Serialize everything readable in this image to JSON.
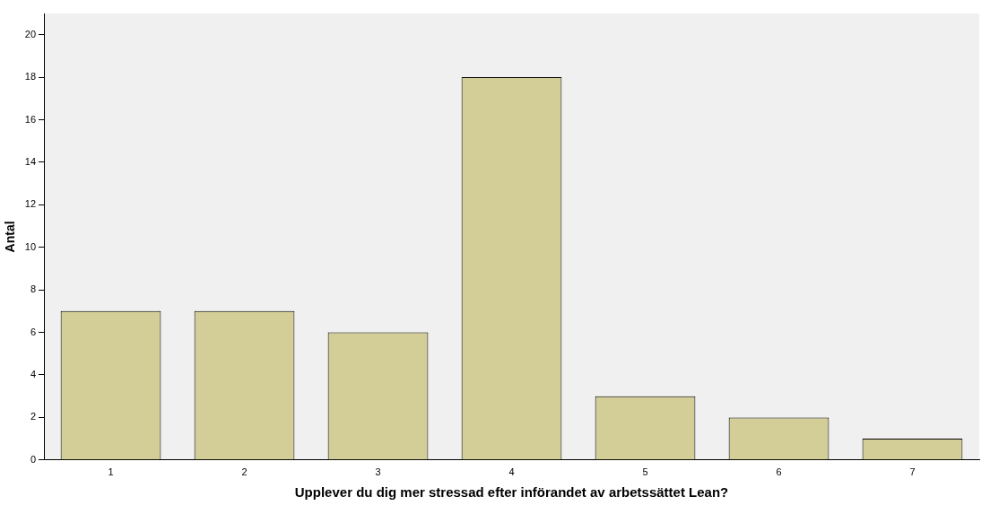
{
  "chart_data": {
    "type": "bar",
    "xlabel": "Upplever du dig mer stressad efter införandet av arbetssättet Lean?",
    "ylabel": "Antal",
    "categories": [
      "1",
      "2",
      "3",
      "4",
      "5",
      "6",
      "7"
    ],
    "values": [
      7,
      7,
      6,
      18,
      3,
      2,
      1
    ],
    "color": "#d3ce97",
    "ylim": [
      0,
      21
    ],
    "yticks": [
      0,
      2,
      4,
      6,
      8,
      10,
      12,
      14,
      16,
      18,
      20
    ],
    "grid": false,
    "legend": false
  }
}
